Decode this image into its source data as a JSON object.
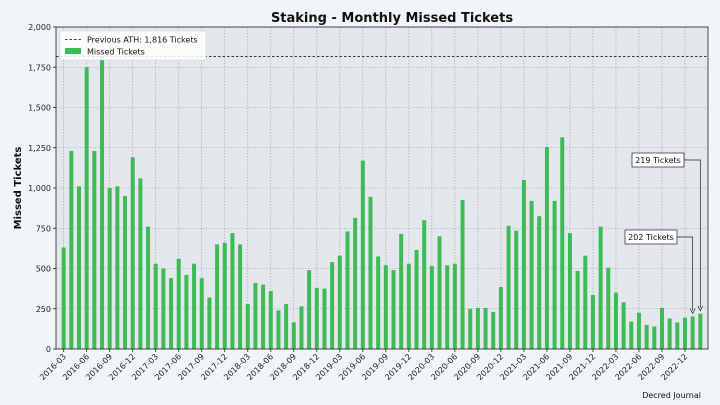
{
  "chart_data": {
    "type": "bar",
    "title": "Staking - Monthly Missed Tickets",
    "xlabel": "",
    "ylabel": "Missed Tickets",
    "ylim": [
      0,
      2000
    ],
    "yticks": [
      0,
      250,
      500,
      750,
      1000,
      1250,
      1500,
      1750,
      2000
    ],
    "ytick_labels": [
      "0",
      "250",
      "500",
      "750",
      "1,000",
      "1,250",
      "1,500",
      "1,750",
      "2,000"
    ],
    "grid": true,
    "legend_position": "top-left",
    "categories": [
      "2016-03",
      "2016-04",
      "2016-05",
      "2016-06",
      "2016-07",
      "2016-08",
      "2016-09",
      "2016-10",
      "2016-11",
      "2016-12",
      "2017-01",
      "2017-02",
      "2017-03",
      "2017-04",
      "2017-05",
      "2017-06",
      "2017-07",
      "2017-08",
      "2017-09",
      "2017-10",
      "2017-11",
      "2017-12",
      "2018-01",
      "2018-02",
      "2018-03",
      "2018-04",
      "2018-05",
      "2018-06",
      "2018-07",
      "2018-08",
      "2018-09",
      "2018-10",
      "2018-11",
      "2018-12",
      "2019-01",
      "2019-02",
      "2019-03",
      "2019-04",
      "2019-05",
      "2019-06",
      "2019-07",
      "2019-08",
      "2019-09",
      "2019-10",
      "2019-11",
      "2019-12",
      "2020-01",
      "2020-02",
      "2020-03",
      "2020-04",
      "2020-05",
      "2020-06",
      "2020-07",
      "2020-08",
      "2020-09",
      "2020-10",
      "2020-11",
      "2020-12",
      "2021-01",
      "2021-02",
      "2021-03",
      "2021-04",
      "2021-05",
      "2021-06",
      "2021-07",
      "2021-08",
      "2021-09",
      "2021-10",
      "2021-11",
      "2021-12",
      "2022-01",
      "2022-02",
      "2022-03",
      "2022-04",
      "2022-05",
      "2022-06",
      "2022-07",
      "2022-08",
      "2022-09",
      "2022-10",
      "2022-11",
      "2022-12",
      "2023-01",
      "2023-02"
    ],
    "xtick_labels": [
      "2016-03",
      "2016-06",
      "2016-09",
      "2016-12",
      "2017-03",
      "2017-06",
      "2017-09",
      "2017-12",
      "2018-03",
      "2018-06",
      "2018-09",
      "2018-12",
      "2019-03",
      "2019-06",
      "2019-09",
      "2019-12",
      "2020-03",
      "2020-06",
      "2020-09",
      "2020-12",
      "2021-03",
      "2021-06",
      "2021-09",
      "2021-12",
      "2022-03",
      "2022-06",
      "2022-09",
      "2022-12"
    ],
    "series": [
      {
        "name": "Missed Tickets",
        "color": "#3dbb55",
        "values": [
          630,
          1230,
          1010,
          1750,
          1230,
          1816,
          1000,
          1010,
          950,
          1190,
          1060,
          760,
          530,
          500,
          440,
          560,
          460,
          530,
          440,
          320,
          650,
          660,
          720,
          650,
          280,
          410,
          400,
          360,
          240,
          280,
          165,
          265,
          490,
          380,
          375,
          540,
          580,
          730,
          815,
          1170,
          945,
          575,
          520,
          490,
          715,
          530,
          615,
          800,
          515,
          700,
          520,
          530,
          925,
          250,
          255,
          255,
          230,
          385,
          765,
          735,
          1050,
          920,
          825,
          1255,
          920,
          1315,
          720,
          485,
          580,
          335,
          760,
          505,
          350,
          290,
          170,
          225,
          150,
          140,
          255,
          190,
          165,
          195,
          202,
          219
        ]
      }
    ],
    "reference_line": {
      "name": "Previous ATH: 1,816 Tickets",
      "value": 1816,
      "style": "dashed",
      "color": "#000000"
    },
    "annotations": [
      {
        "text": "219 Tickets",
        "category": "2023-02",
        "value": 219
      },
      {
        "text": "202 Tickets",
        "category": "2023-01",
        "value": 202
      }
    ],
    "credit": "Decred Journal"
  }
}
